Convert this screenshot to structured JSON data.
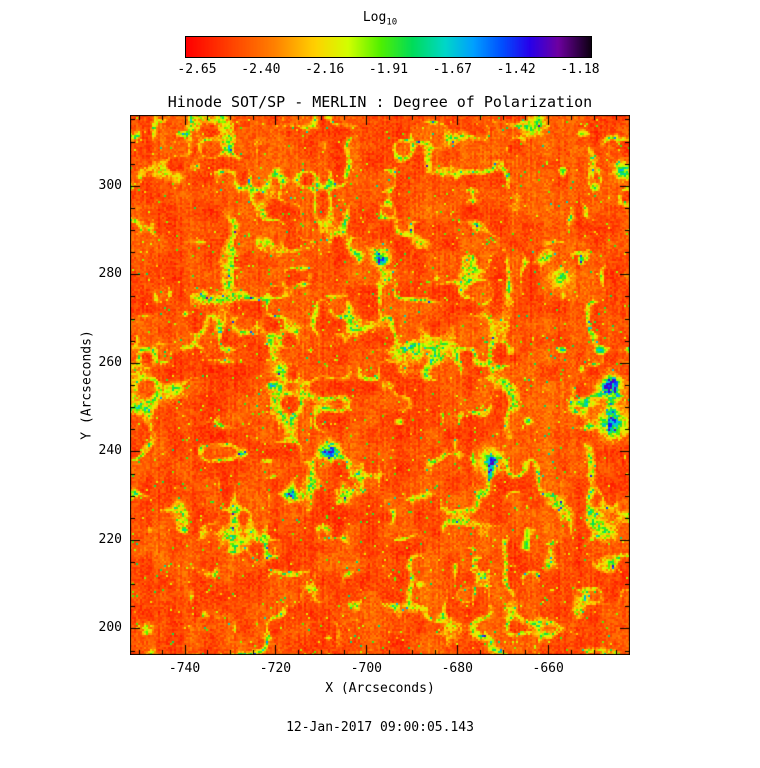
{
  "chart_data": {
    "type": "heatmap",
    "title": "Hinode SOT/SP - MERLIN : Degree of Polarization",
    "xlabel": "X (Arcseconds)",
    "ylabel": "Y (Arcseconds)",
    "timestamp": "12-Jan-2017 09:00:05.143",
    "xlim": [
      -752,
      -642
    ],
    "ylim": [
      194,
      316
    ],
    "x_ticks": [
      -740,
      -720,
      -700,
      -680,
      -660
    ],
    "y_ticks": [
      200,
      220,
      240,
      260,
      280,
      300
    ],
    "minor_tick_step": 5,
    "grid": false,
    "legend_position": "none",
    "colorbar": {
      "label_main": "Log",
      "label_sub": "10",
      "position": "top",
      "range": [
        -2.65,
        -1.18
      ],
      "tick_labels": [
        "-2.65",
        "-2.40",
        "-2.16",
        "-1.91",
        "-1.67",
        "-1.42",
        "-1.18"
      ],
      "stops": [
        {
          "t": 0.0,
          "c": [
            255,
            0,
            0
          ]
        },
        {
          "t": 0.1,
          "c": [
            255,
            60,
            0
          ]
        },
        {
          "t": 0.22,
          "c": [
            255,
            130,
            0
          ]
        },
        {
          "t": 0.32,
          "c": [
            255,
            210,
            0
          ]
        },
        {
          "t": 0.4,
          "c": [
            210,
            255,
            0
          ]
        },
        {
          "t": 0.48,
          "c": [
            80,
            240,
            0
          ]
        },
        {
          "t": 0.56,
          "c": [
            0,
            220,
            90
          ]
        },
        {
          "t": 0.64,
          "c": [
            0,
            215,
            200
          ]
        },
        {
          "t": 0.71,
          "c": [
            0,
            160,
            255
          ]
        },
        {
          "t": 0.78,
          "c": [
            0,
            80,
            255
          ]
        },
        {
          "t": 0.85,
          "c": [
            40,
            0,
            235
          ]
        },
        {
          "t": 0.92,
          "c": [
            110,
            0,
            160
          ]
        },
        {
          "t": 1.0,
          "c": [
            15,
            0,
            20
          ]
        }
      ]
    },
    "values_summary": "Quiet-Sun map: mostly log10 polarization -2.65 to -2.3 (red/orange speckle); magnetic network patches reach -2.1 to -1.8 (yellow/green); sparse strong-field points reach -1.6 to -1.2 (cyan/blue/violet), with the strongest cluster near the right edge around y = 245-260 arcsec.",
    "strong_features": [
      {
        "x": 0.5,
        "y": 0.26,
        "amp": 0.55,
        "r": 3
      },
      {
        "x": 0.4,
        "y": 0.62,
        "amp": 0.5,
        "r": 3
      },
      {
        "x": 0.72,
        "y": 0.64,
        "amp": 0.5,
        "r": 4
      },
      {
        "x": 0.965,
        "y": 0.57,
        "amp": 0.68,
        "r": 5
      },
      {
        "x": 0.985,
        "y": 0.1,
        "amp": 0.6,
        "r": 3
      },
      {
        "x": 0.86,
        "y": 0.3,
        "amp": 0.45,
        "r": 3
      },
      {
        "x": 0.3,
        "y": 0.47,
        "amp": 0.45,
        "r": 2.5
      },
      {
        "x": 0.57,
        "y": 0.44,
        "amp": 0.5,
        "r": 3
      },
      {
        "x": 0.965,
        "y": 0.5,
        "amp": 0.55,
        "r": 4
      }
    ]
  }
}
